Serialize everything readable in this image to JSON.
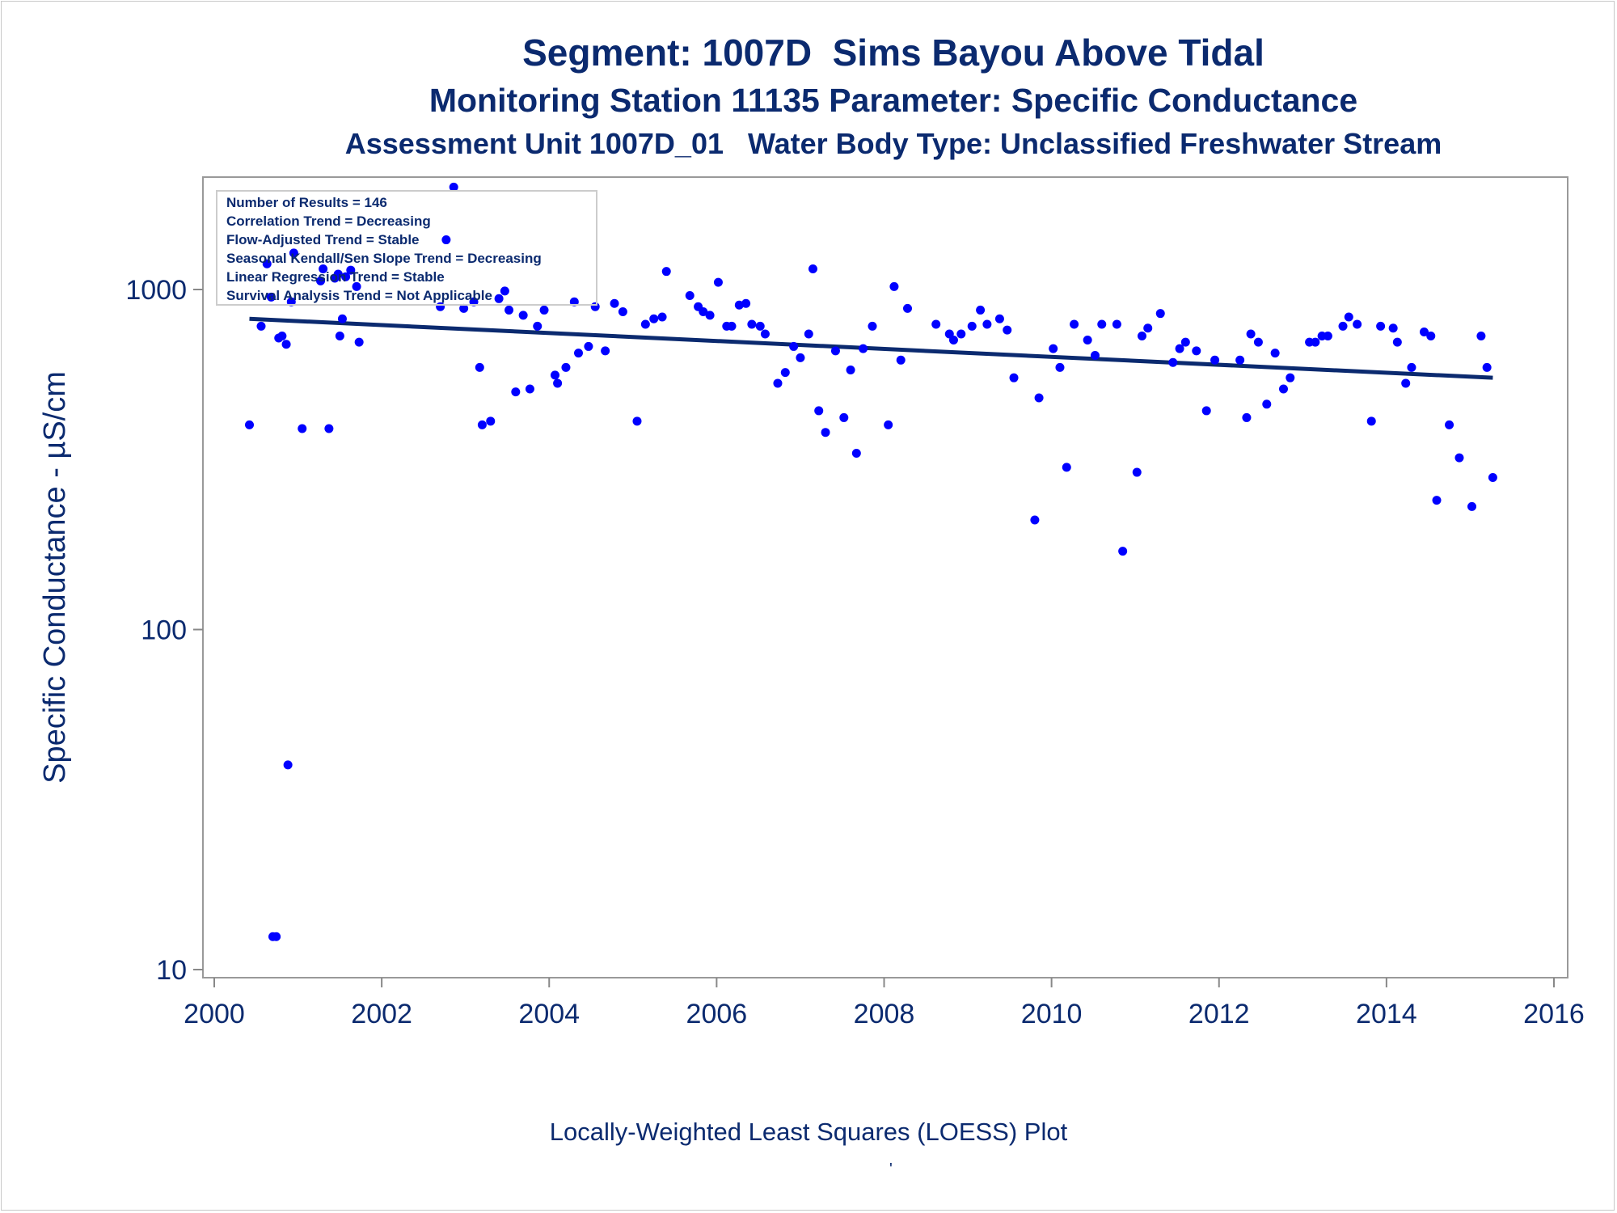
{
  "titles": {
    "line1": "Segment: 1007D  Sims Bayou Above Tidal",
    "line2": "Monitoring Station 11135 Parameter: Specific Conductance",
    "line3": "Assessment Unit 1007D_01   Water Body Type: Unclassified Freshwater Stream"
  },
  "footer": {
    "plot_label": "Locally-Weighted Least Squares (LOESS) Plot",
    "mark": "'"
  },
  "colors": {
    "points": "#0000ff",
    "trend": "#0b2a6f",
    "text": "#0b2a6f",
    "axis": "#888888"
  },
  "chart_data": {
    "type": "scatter",
    "title": "Segment: 1007D  Sims Bayou Above Tidal",
    "xlabel": "",
    "ylabel": "Specific Conductance -  µS/cm",
    "xlim": [
      2000,
      2016
    ],
    "ylim": [
      9.5,
      2300
    ],
    "yscale": "log",
    "xticks": [
      2000,
      2002,
      2004,
      2006,
      2008,
      2010,
      2012,
      2014,
      2016
    ],
    "yticks": [
      10,
      100,
      1000
    ],
    "grid": false,
    "legend": {
      "placement": "top-left",
      "lines": [
        "Number of Results = 146",
        "Correlation Trend = Decreasing",
        "Flow-Adjusted Trend = Stable",
        "Seasonal Kendall/Sen Slope Trend = Decreasing",
        "Linear Regression Trend = Stable",
        "Survival Analysis Trend = Not Applicable"
      ]
    },
    "series": [
      {
        "kind": "points",
        "points": [
          [
            2000.42,
            400
          ],
          [
            2000.56,
            780
          ],
          [
            2000.63,
            1190
          ],
          [
            2000.68,
            950
          ],
          [
            2000.7,
            12.5
          ],
          [
            2000.74,
            12.5
          ],
          [
            2000.77,
            720
          ],
          [
            2000.81,
            730
          ],
          [
            2000.86,
            690
          ],
          [
            2000.88,
            40
          ],
          [
            2000.92,
            920
          ],
          [
            2000.95,
            1280
          ],
          [
            2001.05,
            390
          ],
          [
            2001.27,
            1060
          ],
          [
            2001.3,
            1150
          ],
          [
            2001.37,
            390
          ],
          [
            2001.44,
            1080
          ],
          [
            2001.48,
            1110
          ],
          [
            2001.5,
            730
          ],
          [
            2001.53,
            820
          ],
          [
            2001.57,
            1090
          ],
          [
            2001.63,
            1140
          ],
          [
            2001.7,
            1020
          ],
          [
            2001.73,
            700
          ],
          [
            2002.7,
            890
          ],
          [
            2002.77,
            1400
          ],
          [
            2002.86,
            2000
          ],
          [
            2002.98,
            880
          ],
          [
            2003.1,
            920
          ],
          [
            2003.17,
            590
          ],
          [
            2003.2,
            400
          ],
          [
            2003.3,
            410
          ],
          [
            2003.4,
            940
          ],
          [
            2003.47,
            990
          ],
          [
            2003.52,
            870
          ],
          [
            2003.6,
            500
          ],
          [
            2003.69,
            840
          ],
          [
            2003.77,
            510
          ],
          [
            2003.86,
            780
          ],
          [
            2003.94,
            870
          ],
          [
            2004.07,
            560
          ],
          [
            2004.1,
            530
          ],
          [
            2004.2,
            590
          ],
          [
            2004.3,
            920
          ],
          [
            2004.35,
            650
          ],
          [
            2004.47,
            680
          ],
          [
            2004.55,
            890
          ],
          [
            2004.67,
            660
          ],
          [
            2004.78,
            910
          ],
          [
            2004.88,
            860
          ],
          [
            2005.05,
            410
          ],
          [
            2005.15,
            790
          ],
          [
            2005.25,
            820
          ],
          [
            2005.35,
            830
          ],
          [
            2005.4,
            1130
          ],
          [
            2005.68,
            960
          ],
          [
            2005.78,
            890
          ],
          [
            2005.84,
            860
          ],
          [
            2005.92,
            840
          ],
          [
            2006.02,
            1050
          ],
          [
            2006.12,
            780
          ],
          [
            2006.18,
            780
          ],
          [
            2006.27,
            900
          ],
          [
            2006.35,
            910
          ],
          [
            2006.42,
            790
          ],
          [
            2006.52,
            780
          ],
          [
            2006.58,
            740
          ],
          [
            2006.73,
            530
          ],
          [
            2006.82,
            570
          ],
          [
            2006.92,
            680
          ],
          [
            2007.0,
            630
          ],
          [
            2007.1,
            740
          ],
          [
            2007.15,
            1150
          ],
          [
            2007.22,
            440
          ],
          [
            2007.3,
            380
          ],
          [
            2007.42,
            660
          ],
          [
            2007.52,
            420
          ],
          [
            2007.6,
            580
          ],
          [
            2007.67,
            330
          ],
          [
            2007.75,
            670
          ],
          [
            2007.86,
            780
          ],
          [
            2008.05,
            400
          ],
          [
            2008.12,
            1020
          ],
          [
            2008.2,
            620
          ],
          [
            2008.28,
            880
          ],
          [
            2008.62,
            790
          ],
          [
            2008.78,
            740
          ],
          [
            2008.83,
            710
          ],
          [
            2008.92,
            740
          ],
          [
            2009.05,
            780
          ],
          [
            2009.15,
            870
          ],
          [
            2009.23,
            790
          ],
          [
            2009.38,
            820
          ],
          [
            2009.47,
            760
          ],
          [
            2009.55,
            550
          ],
          [
            2009.8,
            210
          ],
          [
            2009.85,
            480
          ],
          [
            2010.02,
            670
          ],
          [
            2010.1,
            590
          ],
          [
            2010.18,
            300
          ],
          [
            2010.27,
            790
          ],
          [
            2010.43,
            710
          ],
          [
            2010.52,
            640
          ],
          [
            2010.6,
            790
          ],
          [
            2010.78,
            790
          ],
          [
            2010.85,
            170
          ],
          [
            2011.02,
            290
          ],
          [
            2011.08,
            730
          ],
          [
            2011.15,
            770
          ],
          [
            2011.3,
            850
          ],
          [
            2011.45,
            610
          ],
          [
            2011.53,
            670
          ],
          [
            2011.6,
            700
          ],
          [
            2011.73,
            660
          ],
          [
            2011.85,
            440
          ],
          [
            2011.95,
            620
          ],
          [
            2012.25,
            620
          ],
          [
            2012.33,
            420
          ],
          [
            2012.38,
            740
          ],
          [
            2012.47,
            700
          ],
          [
            2012.57,
            460
          ],
          [
            2012.67,
            650
          ],
          [
            2012.77,
            510
          ],
          [
            2012.85,
            550
          ],
          [
            2013.08,
            700
          ],
          [
            2013.15,
            700
          ],
          [
            2013.23,
            730
          ],
          [
            2013.3,
            730
          ],
          [
            2013.48,
            780
          ],
          [
            2013.55,
            830
          ],
          [
            2013.65,
            790
          ],
          [
            2013.82,
            410
          ],
          [
            2013.93,
            780
          ],
          [
            2014.08,
            770
          ],
          [
            2014.13,
            700
          ],
          [
            2014.23,
            530
          ],
          [
            2014.3,
            590
          ],
          [
            2014.45,
            750
          ],
          [
            2014.53,
            730
          ],
          [
            2014.6,
            240
          ],
          [
            2014.75,
            400
          ],
          [
            2014.87,
            320
          ],
          [
            2015.02,
            230
          ],
          [
            2015.13,
            730
          ],
          [
            2015.2,
            590
          ],
          [
            2015.27,
            280
          ]
        ]
      },
      {
        "kind": "trend",
        "points": [
          [
            2000.42,
            820
          ],
          [
            2015.27,
            550
          ]
        ]
      }
    ]
  }
}
